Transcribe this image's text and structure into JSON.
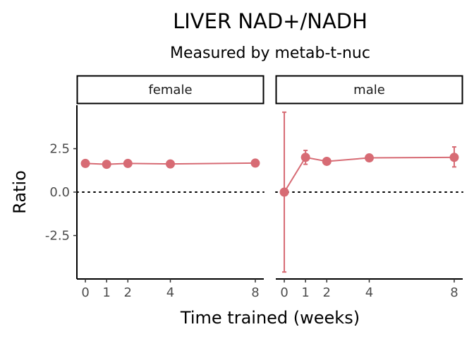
{
  "chart_data": {
    "type": "line",
    "title": "LIVER NAD+/NADH",
    "subtitle": "Measured by metab-t-nuc",
    "xlabel": "Time trained (weeks)",
    "ylabel": "Ratio",
    "x_ticks": [
      0,
      1,
      2,
      4,
      8
    ],
    "y_ticks": [
      -2.5,
      0.0,
      2.5
    ],
    "y_tick_labels": [
      "-2.5",
      "0.0",
      "2.5"
    ],
    "xlim": [
      -0.4,
      8.4
    ],
    "ylim": [
      -5.0,
      5.0
    ],
    "reference_line_y": 0,
    "color": "#d76b74",
    "panels": [
      {
        "label": "female",
        "points": [
          {
            "x": 0,
            "y": 1.65,
            "err_low": 1.65,
            "err_high": 1.65
          },
          {
            "x": 1,
            "y": 1.6,
            "err_low": 1.6,
            "err_high": 1.6
          },
          {
            "x": 2,
            "y": 1.65,
            "err_low": 1.65,
            "err_high": 1.65
          },
          {
            "x": 4,
            "y": 1.62,
            "err_low": 1.62,
            "err_high": 1.62
          },
          {
            "x": 8,
            "y": 1.67,
            "err_low": 1.67,
            "err_high": 1.67
          }
        ]
      },
      {
        "label": "male",
        "points": [
          {
            "x": 0,
            "y": 0.0,
            "err_low": -4.6,
            "err_high": 4.6
          },
          {
            "x": 1,
            "y": 2.0,
            "err_low": 1.6,
            "err_high": 2.4
          },
          {
            "x": 2,
            "y": 1.77,
            "err_low": 1.77,
            "err_high": 1.77
          },
          {
            "x": 4,
            "y": 1.97,
            "err_low": 1.85,
            "err_high": 2.1
          },
          {
            "x": 8,
            "y": 2.0,
            "err_low": 1.45,
            "err_high": 2.6
          }
        ]
      }
    ]
  }
}
